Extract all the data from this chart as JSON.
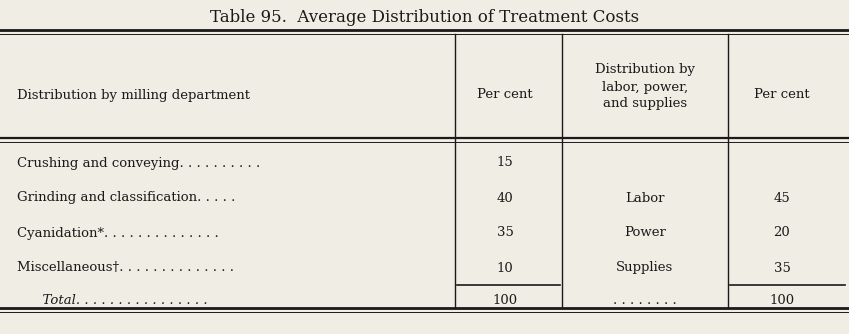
{
  "title": "Table 95.  Average Distribution of Treatment Costs",
  "col1_header": "Distribution by milling department",
  "col2_header": "Per cent",
  "col3_header": "Distribution by\nlabor, power,\nand supplies",
  "col4_header": "Per cent",
  "col1_data": [
    "Crushing and conveying. . . . . . . . . .",
    "Grinding and classification. . . . .",
    "Cyanidation*. . . . . . . . . . . . . .",
    "Miscellaneous†. . . . . . . . . . . . . .",
    "  Total. . . . . . . . . . . . . . . ."
  ],
  "col2_data": [
    "15",
    "40",
    "35",
    "10",
    "100"
  ],
  "col3_data": [
    "",
    "Labor",
    "Power",
    "Supplies",
    ". . . . . . . ."
  ],
  "col4_data": [
    "",
    "45",
    "20",
    "35",
    "100"
  ],
  "bg_color": "#f0ede4",
  "text_color": "#1a1a1a",
  "line_color": "#1a1a1a"
}
